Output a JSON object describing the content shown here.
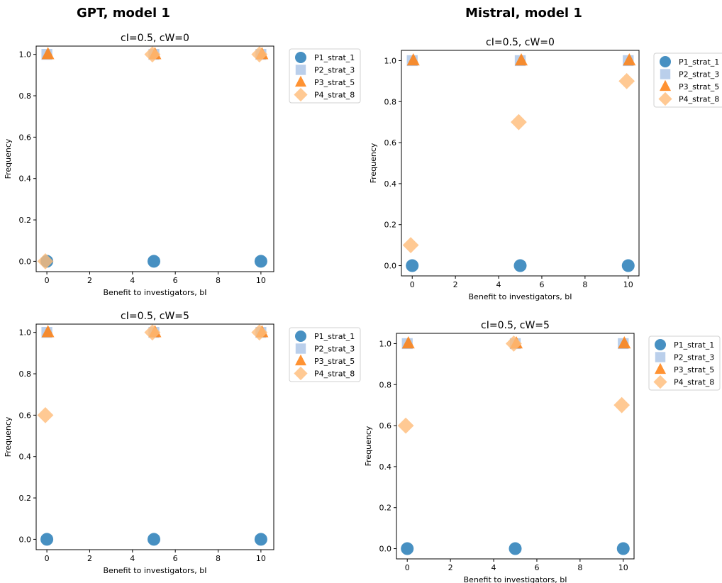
{
  "column_titles": [
    "GPT, model 1",
    "Mistral, model 1"
  ],
  "chart_data": [
    {
      "type": "scatter",
      "column": "GPT, model 1",
      "title": "cI=0.5, cW=0",
      "xlabel": "Benefit to investigators, bI",
      "ylabel": "Frequency",
      "xlim": [
        -0.5,
        10.6
      ],
      "ylim": [
        -0.05,
        1.04
      ],
      "xticks": [
        "0",
        "2",
        "4",
        "6",
        "8",
        "10"
      ],
      "yticks": [
        "0.0",
        "0.2",
        "0.4",
        "0.6",
        "0.8",
        "1.0"
      ],
      "legend": "outside-right",
      "series": [
        {
          "name": "P1_strat_1",
          "x": [
            0,
            5,
            10
          ],
          "y": [
            0.0,
            0.0,
            0.0
          ]
        },
        {
          "name": "P2_strat_3",
          "x": [
            0,
            5,
            10
          ],
          "y": [
            1.0,
            1.0,
            1.0
          ]
        },
        {
          "name": "P3_strat_5",
          "x": [
            0,
            5,
            10
          ],
          "y": [
            1.0,
            1.0,
            1.0
          ]
        },
        {
          "name": "P4_strat_8",
          "x": [
            0,
            5,
            10
          ],
          "y": [
            0.0,
            1.0,
            1.0
          ]
        }
      ]
    },
    {
      "type": "scatter",
      "column": "Mistral, model 1",
      "title": "cI=0.5, cW=0",
      "xlabel": "Benefit to investigators, bI",
      "ylabel": "Frequency",
      "xlim": [
        -0.5,
        10.5
      ],
      "ylim": [
        -0.05,
        1.05
      ],
      "xticks": [
        "0",
        "2",
        "4",
        "6",
        "8",
        "10"
      ],
      "yticks": [
        "0.0",
        "0.2",
        "0.4",
        "0.6",
        "0.8",
        "1.0"
      ],
      "legend": "outside-right",
      "series": [
        {
          "name": "P1_strat_1",
          "x": [
            0,
            5,
            10
          ],
          "y": [
            0.0,
            0.0,
            0.0
          ]
        },
        {
          "name": "P2_strat_3",
          "x": [
            0,
            5,
            10
          ],
          "y": [
            1.0,
            1.0,
            1.0
          ]
        },
        {
          "name": "P3_strat_5",
          "x": [
            0,
            5,
            10
          ],
          "y": [
            1.0,
            1.0,
            1.0
          ]
        },
        {
          "name": "P4_strat_8",
          "x": [
            0,
            5,
            10
          ],
          "y": [
            0.1,
            0.7,
            0.9
          ]
        }
      ]
    },
    {
      "type": "scatter",
      "column": "GPT, model 1",
      "title": "cI=0.5, cW=5",
      "xlabel": "Benefit to investigators, bI",
      "ylabel": "Frequency",
      "xlim": [
        -0.5,
        10.6
      ],
      "ylim": [
        -0.05,
        1.04
      ],
      "xticks": [
        "0",
        "2",
        "4",
        "6",
        "8",
        "10"
      ],
      "yticks": [
        "0.0",
        "0.2",
        "0.4",
        "0.6",
        "0.8",
        "1.0"
      ],
      "legend": "outside-right",
      "series": [
        {
          "name": "P1_strat_1",
          "x": [
            0,
            5,
            10
          ],
          "y": [
            0.0,
            0.0,
            0.0
          ]
        },
        {
          "name": "P2_strat_3",
          "x": [
            0,
            5,
            10
          ],
          "y": [
            1.0,
            1.0,
            1.0
          ]
        },
        {
          "name": "P3_strat_5",
          "x": [
            0,
            5,
            10
          ],
          "y": [
            1.0,
            1.0,
            1.0
          ]
        },
        {
          "name": "P4_strat_8",
          "x": [
            0,
            5,
            10
          ],
          "y": [
            0.6,
            1.0,
            1.0
          ]
        }
      ]
    },
    {
      "type": "scatter",
      "column": "Mistral, model 1",
      "title": "cI=0.5, cW=5",
      "xlabel": "Benefit to investigators, bI",
      "ylabel": "Frequency",
      "xlim": [
        -0.5,
        10.5
      ],
      "ylim": [
        -0.05,
        1.05
      ],
      "xticks": [
        "0",
        "2",
        "4",
        "6",
        "8",
        "10"
      ],
      "yticks": [
        "0.0",
        "0.2",
        "0.4",
        "0.6",
        "0.8",
        "1.0"
      ],
      "legend": "outside-right",
      "series": [
        {
          "name": "P1_strat_1",
          "x": [
            0,
            5,
            10
          ],
          "y": [
            0.0,
            0.0,
            0.0
          ]
        },
        {
          "name": "P2_strat_3",
          "x": [
            0,
            5,
            10
          ],
          "y": [
            1.0,
            1.0,
            1.0
          ]
        },
        {
          "name": "P3_strat_5",
          "x": [
            0,
            5,
            10
          ],
          "y": [
            1.0,
            1.0,
            1.0
          ]
        },
        {
          "name": "P4_strat_8",
          "x": [
            0,
            5,
            10
          ],
          "y": [
            0.6,
            1.0,
            0.7
          ]
        }
      ]
    }
  ],
  "colors": {
    "P1_strat_1": "#1f77b4",
    "P2_strat_3": "#aec7e8",
    "P3_strat_5": "#ff7f0e",
    "P4_strat_8": "#ffbb78"
  },
  "marker_icons": {
    "P1_strat_1": "circle",
    "P2_strat_3": "square",
    "P3_strat_5": "triangle",
    "P4_strat_8": "diamond"
  }
}
